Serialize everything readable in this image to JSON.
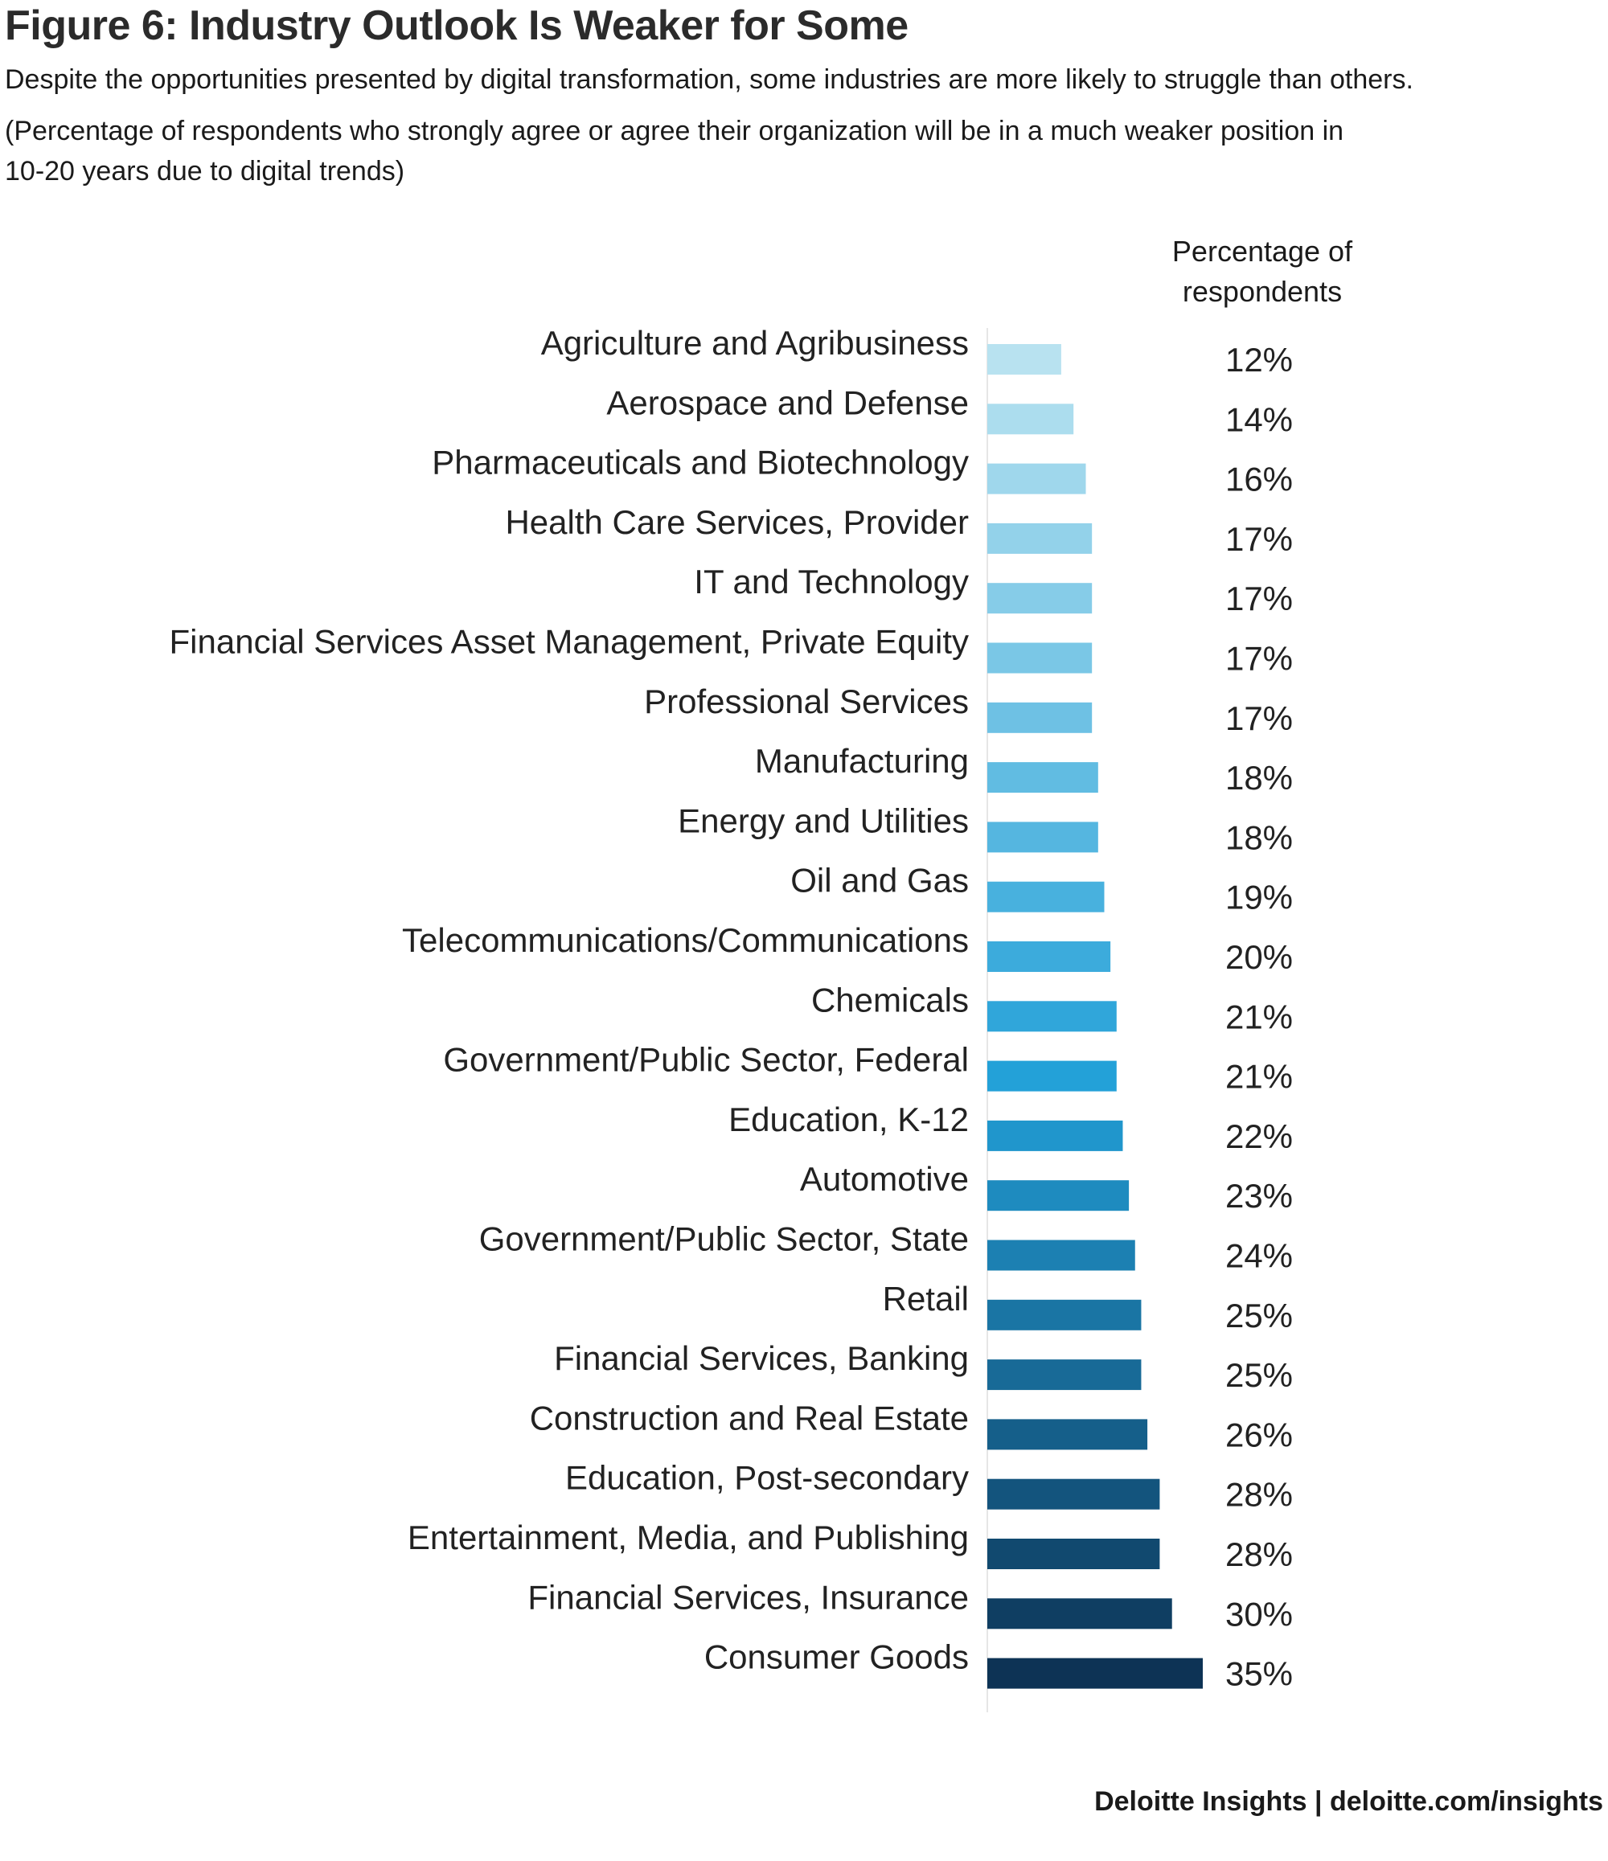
{
  "title": "Figure 6: Industry Outlook Is Weaker for Some",
  "subtitle": "Despite the opportunities presented by digital transformation, some industries are more likely to struggle than others.",
  "note": "(Percentage of respondents who strongly agree or agree their organization will be in a much weaker position in 10-20 years due to digital trends)",
  "column_header": "Percentage of respondents",
  "footer": "Deloitte Insights | deloitte.com/insights",
  "colors": {
    "bar_light": "#b8e2f0",
    "bar_mid": "#22a0d8",
    "bar_dark": "#0d3355"
  },
  "chart_data": {
    "type": "bar",
    "orientation": "horizontal",
    "title": "Figure 6: Industry Outlook Is Weaker for Some",
    "xlabel": "",
    "ylabel": "",
    "value_header": "Percentage of respondents",
    "unit": "%",
    "xlim": [
      0,
      35
    ],
    "grid": false,
    "categories": [
      "Agriculture and Agribusiness",
      "Aerospace and Defense",
      "Pharmaceuticals and Biotechnology",
      "Health Care Services, Provider",
      "IT and Technology",
      "Financial Services Asset Management, Private Equity",
      "Professional Services",
      "Manufacturing",
      "Energy and Utilities",
      "Oil and Gas",
      "Telecommunications/Communications",
      "Chemicals",
      "Government/Public Sector, Federal",
      "Education, K-12",
      "Automotive",
      "Government/Public Sector, State",
      "Retail",
      "Financial Services, Banking",
      "Construction and Real Estate",
      "Education, Post-secondary",
      "Entertainment, Media, and Publishing",
      "Financial Services, Insurance",
      "Consumer Goods"
    ],
    "values": [
      12,
      14,
      16,
      17,
      17,
      17,
      17,
      18,
      18,
      19,
      20,
      21,
      21,
      22,
      23,
      24,
      25,
      25,
      26,
      28,
      28,
      30,
      35
    ],
    "value_labels": [
      "12%",
      "14%",
      "16%",
      "17%",
      "17%",
      "17%",
      "17%",
      "18%",
      "18%",
      "19%",
      "20%",
      "21%",
      "21%",
      "22%",
      "23%",
      "24%",
      "25%",
      "25%",
      "26%",
      "28%",
      "28%",
      "30%",
      "35%"
    ]
  }
}
